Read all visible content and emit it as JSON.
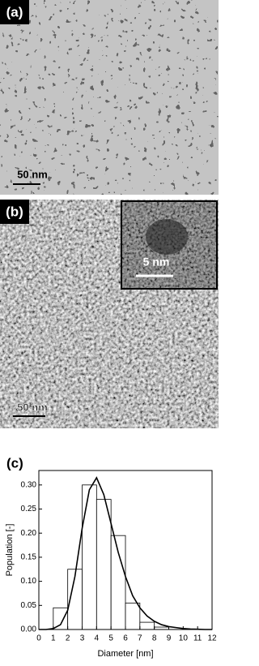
{
  "panels": [
    {
      "label": "(a)",
      "scale_bar": "50 nm"
    },
    {
      "label": "(b)",
      "scale_bar": "50 nm",
      "inset_scale_bar": "5 nm"
    },
    {
      "label": "(c)"
    }
  ],
  "chart_data": {
    "type": "histogram",
    "bins": [
      1,
      2,
      3,
      4,
      5,
      6,
      7,
      8,
      9
    ],
    "values": [
      0.045,
      0.125,
      0.3,
      0.27,
      0.195,
      0.055,
      0.015,
      0.005
    ],
    "fit": {
      "x": [
        0,
        0.5,
        1,
        1.5,
        2,
        2.5,
        3,
        3.5,
        4,
        4.5,
        5,
        5.5,
        6,
        6.5,
        7,
        7.5,
        8,
        8.5,
        9,
        9.5,
        10,
        10.5,
        11,
        11.5,
        12
      ],
      "values": [
        0,
        0,
        0.002,
        0.01,
        0.04,
        0.11,
        0.21,
        0.29,
        0.315,
        0.28,
        0.22,
        0.16,
        0.11,
        0.07,
        0.045,
        0.028,
        0.017,
        0.01,
        0.006,
        0.004,
        0.002,
        0.001,
        0.0005,
        0,
        0
      ]
    },
    "xlabel": "Diameter [nm]",
    "ylabel": "Population [-]",
    "xlim": [
      0,
      12
    ],
    "xticks": [
      0,
      1,
      2,
      3,
      4,
      5,
      6,
      7,
      8,
      9,
      10,
      11,
      12
    ],
    "ylim": [
      0,
      0.33
    ],
    "yticks": [
      {
        "value": 0,
        "label": "0.00"
      },
      {
        "value": 0.05,
        "label": "0.05"
      },
      {
        "value": 0.1,
        "label": "0.10"
      },
      {
        "value": 0.15,
        "label": "0.15"
      },
      {
        "value": 0.2,
        "label": "0.20"
      },
      {
        "value": 0.25,
        "label": "0.25"
      },
      {
        "value": 0.3,
        "label": "0.30"
      }
    ],
    "color": "#ffffff",
    "line_color": "#000000"
  }
}
